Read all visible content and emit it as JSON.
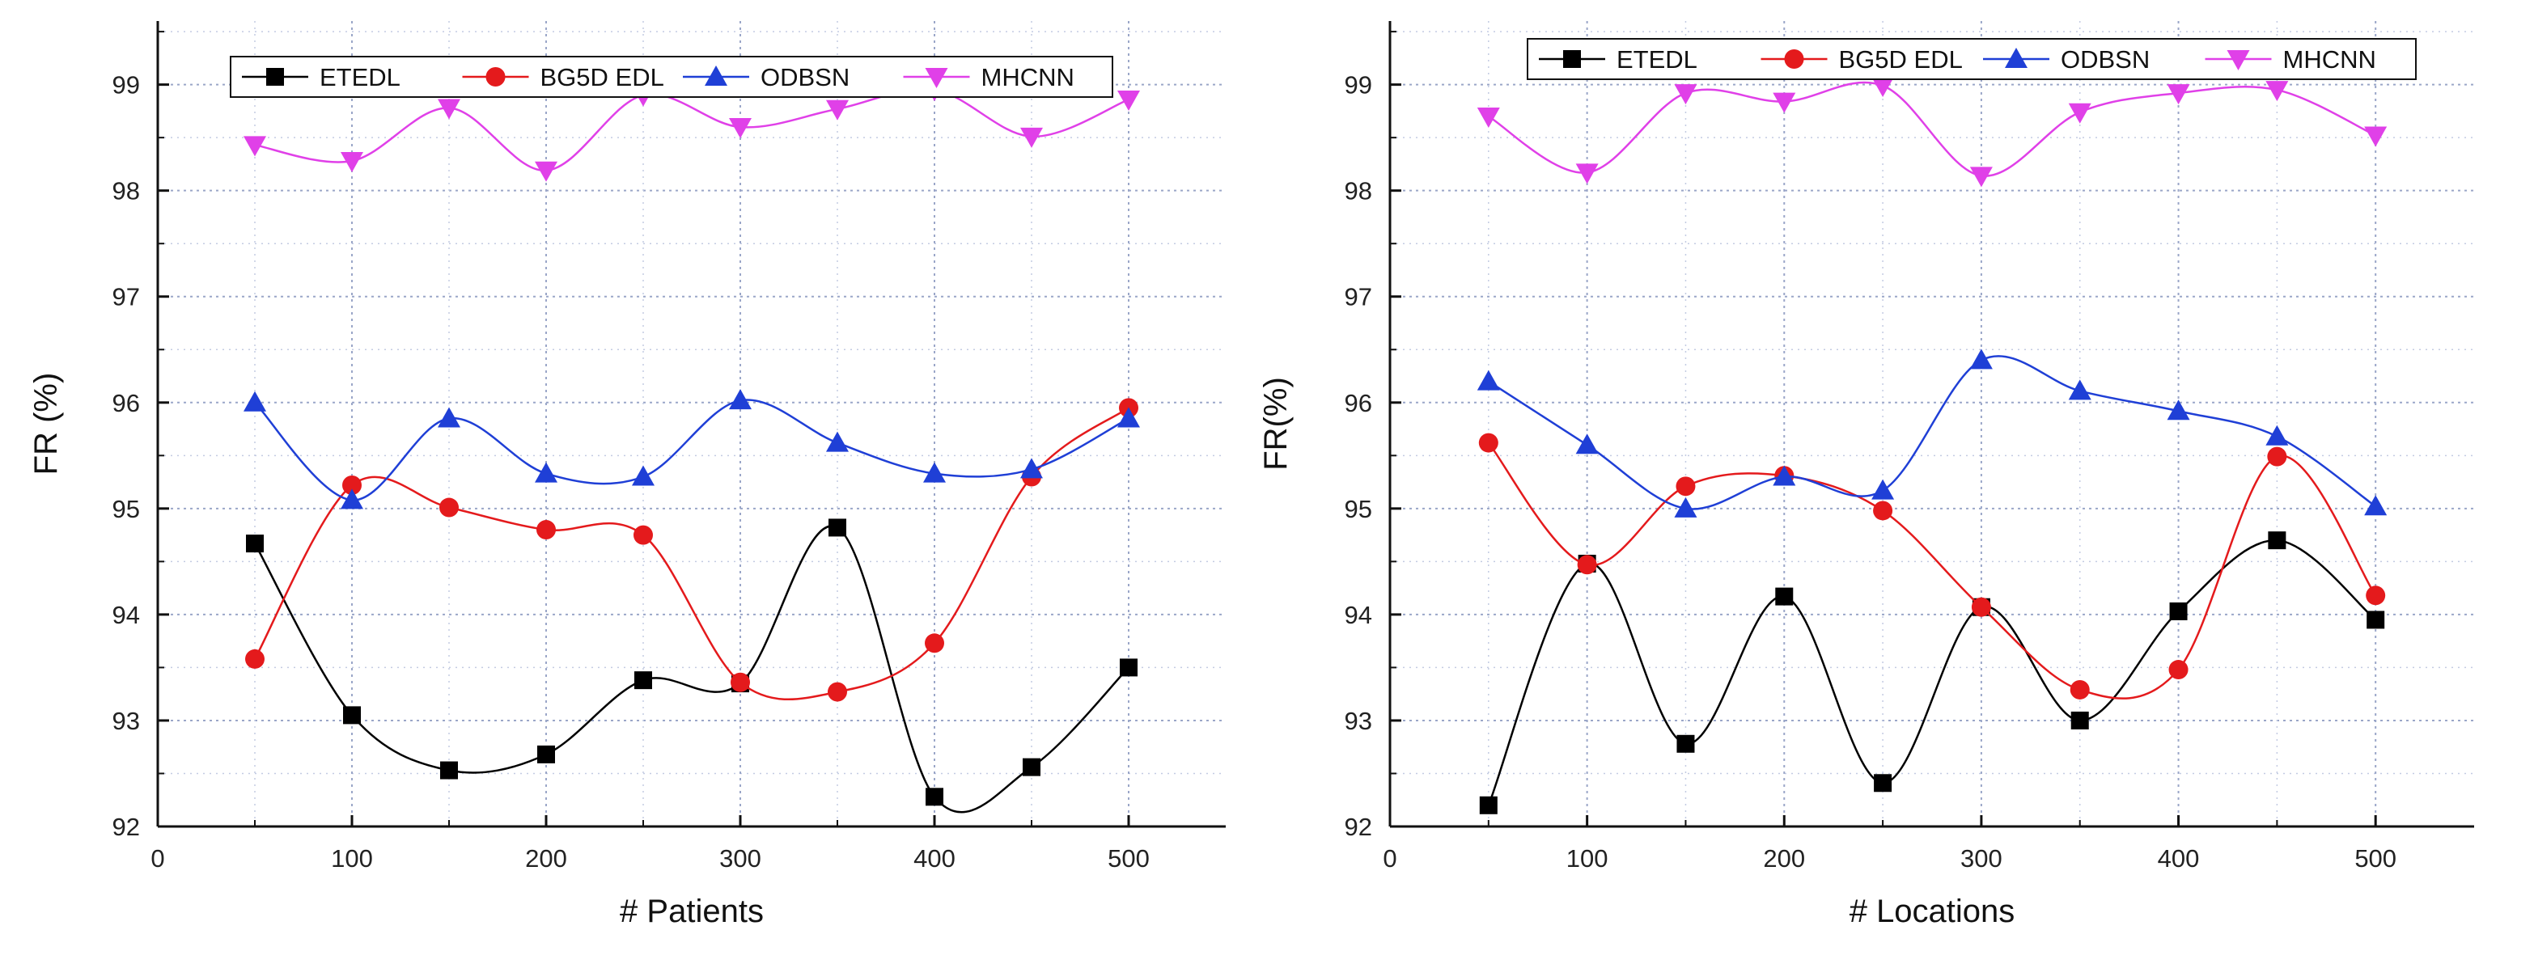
{
  "chart_data": [
    {
      "type": "line",
      "title": "",
      "xlabel": "# Patients",
      "ylabel": "FR (%)",
      "xlim": [
        0,
        550
      ],
      "ylim": [
        92,
        99.6
      ],
      "xticks": [
        0,
        100,
        200,
        300,
        400,
        500
      ],
      "yticks": [
        92,
        93,
        94,
        95,
        96,
        97,
        98,
        99
      ],
      "grid": true,
      "legend_position": "top",
      "x": [
        50,
        100,
        150,
        200,
        250,
        300,
        350,
        400,
        450,
        500
      ],
      "series": [
        {
          "name": "ETEDL",
          "color": "#000000",
          "marker": "square",
          "values": [
            94.67,
            93.05,
            92.53,
            92.68,
            93.38,
            93.35,
            94.82,
            92.28,
            92.56,
            93.5
          ]
        },
        {
          "name": "BG5D EDL",
          "color": "#e41a1c",
          "marker": "circle",
          "values": [
            93.58,
            95.22,
            95.01,
            94.8,
            94.75,
            93.36,
            93.27,
            93.73,
            95.3,
            95.95
          ]
        },
        {
          "name": "ODBSN",
          "color": "#1f3fd6",
          "marker": "triangle-up",
          "values": [
            96.0,
            95.08,
            95.85,
            95.33,
            95.3,
            96.02,
            95.62,
            95.33,
            95.37,
            95.85
          ]
        },
        {
          "name": "MHCNN",
          "color": "#e040e8",
          "marker": "triangle-down",
          "values": [
            98.43,
            98.28,
            98.78,
            98.19,
            98.9,
            98.6,
            98.77,
            98.95,
            98.51,
            98.86
          ]
        }
      ]
    },
    {
      "type": "line",
      "title": "",
      "xlabel": "# Locations",
      "ylabel": "FR(%)",
      "xlim": [
        0,
        550
      ],
      "ylim": [
        92,
        99.6
      ],
      "xticks": [
        0,
        100,
        200,
        300,
        400,
        500
      ],
      "yticks": [
        92,
        93,
        94,
        95,
        96,
        97,
        98,
        99
      ],
      "grid": true,
      "legend_position": "top",
      "x": [
        50,
        100,
        150,
        200,
        250,
        300,
        350,
        400,
        450,
        500
      ],
      "series": [
        {
          "name": "ETEDL",
          "color": "#000000",
          "marker": "square",
          "values": [
            92.2,
            94.48,
            92.78,
            94.17,
            92.41,
            94.07,
            93.0,
            94.03,
            94.7,
            93.95
          ]
        },
        {
          "name": "BG5D EDL",
          "color": "#e41a1c",
          "marker": "circle",
          "values": [
            95.62,
            94.47,
            95.21,
            95.31,
            94.98,
            94.07,
            93.29,
            93.48,
            95.49,
            94.18
          ]
        },
        {
          "name": "ODBSN",
          "color": "#1f3fd6",
          "marker": "triangle-up",
          "values": [
            96.2,
            95.6,
            95.0,
            95.3,
            95.17,
            96.4,
            96.11,
            95.92,
            95.68,
            95.02
          ]
        },
        {
          "name": "MHCNN",
          "color": "#e040e8",
          "marker": "triangle-down",
          "values": [
            98.7,
            98.17,
            98.92,
            98.84,
            98.99,
            98.14,
            98.74,
            98.92,
            98.95,
            98.52
          ]
        }
      ]
    }
  ]
}
